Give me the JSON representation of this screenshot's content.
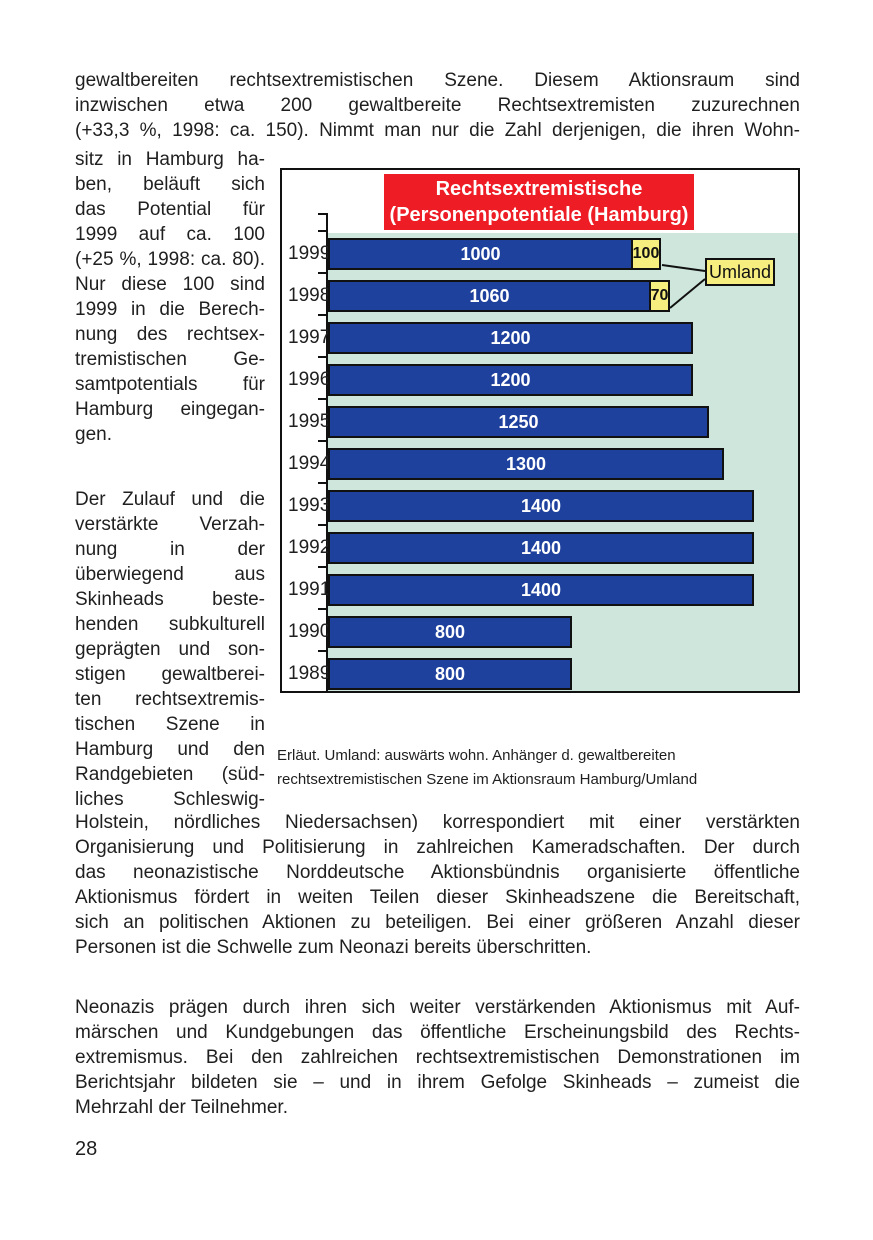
{
  "page": {
    "number": "28"
  },
  "body": {
    "intro_lines": [
      "gewaltbereiten rechtsextremistischen Szene. Diesem Aktionsraum sind",
      "inzwischen etwa 200 gewaltbereite Rechtsextremisten zuzurechnen",
      "(+33,3 %, 1998: ca. 150). Nimmt man nur die Zahl derjenigen, die ihren Wohn-"
    ],
    "left_column_para1_lines": [
      "sitz in Hamburg ha-",
      "ben, beläuft sich",
      "das Potential für",
      "1999 auf ca. 100",
      "(+25 %, 1998: ca. 80).",
      "Nur diese 100 sind",
      "1999 in die Berech-",
      "nung des rechtsex-",
      "tremistischen Ge-",
      "samtpotentials für",
      "Hamburg eingegan-",
      "gen."
    ],
    "left_column_para2_lines": [
      "Der Zulauf und die",
      "verstärkte Verzah-",
      "nung in der",
      "überwiegend aus",
      "Skinheads beste-",
      "henden subkulturell",
      "geprägten und son-",
      "stigen gewaltberei-",
      "ten rechtsextremis-",
      "tischen Szene in",
      "Hamburg und den",
      "Randgebieten (süd-",
      "liches Schleswig-"
    ],
    "after_chart_lines": [
      "Holstein, nördliches Niedersachsen) korrespondiert mit einer verstärkten",
      "Organisierung und Politisierung in zahlreichen Kameradschaften. Der durch",
      "das neonazistische Norddeutsche Aktionsbündnis organisierte öffentliche",
      "Aktionismus fördert in weiten Teilen dieser Skinheadszene die Bereitschaft,",
      "sich an politischen Aktionen zu beteiligen. Bei einer größeren Anzahl dieser",
      "Personen ist die Schwelle zum Neonazi bereits überschritten."
    ],
    "closing_lines": [
      "Neonazis prägen durch ihren sich weiter verstärkenden Aktionismus mit Auf-",
      "märschen und Kundgebungen das öffentliche Erscheinungsbild des Rechts-",
      "extremismus. Bei den zahlreichen rechtsextremistischen Demonstrationen im",
      "Berichtsjahr bildeten sie – und in ihrem Gefolge Skinheads – zumeist die",
      "Mehrzahl der Teilnehmer."
    ]
  },
  "figure": {
    "caption_lines": [
      "Erläut. Umland: auswärts wohn. Anhänger d. gewaltbereiten",
      "rechtsextremistischen Szene im Aktionsraum Hamburg/Umland"
    ]
  },
  "chart_data": {
    "type": "bar",
    "orientation": "horizontal",
    "title": "Rechtsextremistische (Personenpotentiale (Hamburg)",
    "title_lines": [
      "Rechtsextremistische",
      "(Personenpotentiale (Hamburg)"
    ],
    "categories": [
      "1999",
      "1998",
      "1997",
      "1996",
      "1995",
      "1994",
      "1993",
      "1992",
      "1991",
      "1990",
      "1989"
    ],
    "series": [
      {
        "name": "Hamburg",
        "color": "#1f419e",
        "values": [
          1000,
          1060,
          1200,
          1200,
          1250,
          1300,
          1400,
          1400,
          1400,
          800,
          800
        ]
      },
      {
        "name": "Umland",
        "color": "#f6ee7e",
        "values": [
          100,
          70,
          null,
          null,
          null,
          null,
          null,
          null,
          null,
          null,
          null
        ]
      }
    ],
    "xlim": [
      0,
      1550
    ],
    "grid": false,
    "legend_position": "callout-right",
    "callout": {
      "label": "Umland"
    },
    "colors": {
      "banner": "#ee1c24",
      "banner_text": "#ffffff",
      "bar": "#1f419e",
      "umland": "#f6ee7e",
      "plot_bg": "#cfe6dc",
      "outline": "#111111"
    }
  }
}
